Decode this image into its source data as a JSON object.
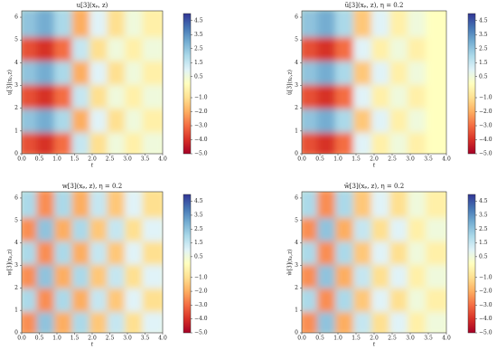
{
  "chart_data": [
    {
      "type": "heatmap",
      "title": "u[3](xₚ, z)",
      "x_label": "t",
      "y_label": "u[3](xₚ,z)",
      "x": [
        0.25,
        0.75,
        1.25,
        1.75,
        2.25,
        2.75,
        3.25,
        3.75
      ],
      "y": [
        0.52,
        1.57,
        2.62,
        3.67,
        4.71,
        5.76
      ],
      "values": [
        [
          -3.5,
          -4.0,
          -3.0,
          1.5,
          -1.0,
          0.5,
          -0.5,
          0.5
        ],
        [
          2.5,
          3.0,
          2.0,
          -2.0,
          1.0,
          -1.0,
          0.5,
          -0.5
        ],
        [
          -3.5,
          -4.0,
          -3.0,
          1.5,
          -1.0,
          0.5,
          -0.5,
          0.5
        ],
        [
          2.5,
          3.0,
          2.0,
          -2.0,
          1.0,
          -1.0,
          0.5,
          -0.5
        ],
        [
          -3.5,
          -4.0,
          -3.0,
          1.5,
          -1.0,
          0.5,
          -0.5,
          0.5
        ],
        [
          2.5,
          3.0,
          2.0,
          -2.0,
          1.0,
          -1.0,
          0.5,
          -0.5
        ]
      ],
      "xlim": [
        0,
        4
      ],
      "ylim": [
        0,
        6.28
      ],
      "clim": [
        -5,
        5
      ],
      "colormap": "RdYlBu",
      "xticks": [
        {
          "value": 0,
          "label": "0.0"
        },
        0.5,
        {
          "value": 1,
          "label": "1.0"
        },
        1.5,
        {
          "value": 2,
          "label": "2.0"
        },
        2.5,
        {
          "value": 3,
          "label": "3.0"
        },
        3.5,
        {
          "value": 4,
          "label": "4.0"
        }
      ],
      "yticks": [
        0,
        1,
        2,
        3,
        4,
        5,
        6
      ],
      "cticks": [
        4.5,
        3.5,
        2.5,
        1.5,
        0.5,
        {
          "value": -1,
          "label": "−1.0"
        },
        {
          "value": -2,
          "label": "−2.0"
        },
        {
          "value": -3,
          "label": "−3.0"
        },
        {
          "value": -4,
          "label": "−4.0"
        },
        {
          "value": -5,
          "label": "−5.0"
        }
      ]
    },
    {
      "type": "heatmap",
      "title": "ũ[3](xₚ, z), η = 0.2",
      "x_label": "t",
      "y_label": "ũ[3](xₚ,z)",
      "x": [
        0.25,
        0.75,
        1.25,
        1.75,
        2.25,
        2.75,
        3.25,
        3.75
      ],
      "y": [
        0.52,
        1.57,
        2.62,
        3.67,
        4.71,
        5.76
      ],
      "values": [
        [
          -3.5,
          -4.0,
          -3.0,
          1.0,
          -0.5,
          0.5,
          -0.5,
          0.0
        ],
        [
          2.5,
          3.0,
          2.0,
          -1.5,
          1.0,
          -0.5,
          0.5,
          0.0
        ],
        [
          -3.5,
          -4.0,
          -3.0,
          1.0,
          -0.5,
          0.5,
          -0.5,
          0.0
        ],
        [
          2.5,
          3.0,
          2.0,
          -1.5,
          1.0,
          -0.5,
          0.5,
          0.0
        ],
        [
          -3.5,
          -4.0,
          -3.0,
          1.0,
          -0.5,
          0.5,
          -0.5,
          0.0
        ],
        [
          2.5,
          3.0,
          2.0,
          -1.5,
          1.0,
          -0.5,
          0.5,
          0.0
        ]
      ],
      "xlim": [
        0,
        4
      ],
      "ylim": [
        0,
        6.28
      ],
      "clim": [
        -5,
        5
      ],
      "colormap": "RdYlBu",
      "xticks": [
        {
          "value": 0,
          "label": "0.0"
        },
        0.5,
        {
          "value": 1,
          "label": "1.0"
        },
        1.5,
        {
          "value": 2,
          "label": "2.0"
        },
        2.5,
        {
          "value": 3,
          "label": "3.0"
        },
        3.5,
        {
          "value": 4,
          "label": "4.0"
        }
      ],
      "yticks": [
        0,
        1,
        2,
        3,
        4,
        5,
        6
      ],
      "cticks": [
        4.5,
        3.5,
        2.5,
        1.5,
        0.5,
        {
          "value": -1,
          "label": "−1.0"
        },
        {
          "value": -2,
          "label": "−2.0"
        },
        {
          "value": -3,
          "label": "−3.0"
        },
        {
          "value": -4,
          "label": "−4.0"
        },
        {
          "value": -5,
          "label": "−5.0"
        }
      ]
    },
    {
      "type": "heatmap",
      "title": "w[3](xₚ, z), η = 0.2",
      "x_label": "t",
      "y_label": "w[3](xₚ,z)",
      "x": [
        0.25,
        0.75,
        1.25,
        1.75,
        2.25,
        2.75,
        3.25,
        3.75
      ],
      "y": [
        0.52,
        1.57,
        2.62,
        3.67,
        4.71,
        5.76
      ],
      "values": [
        [
          -2.5,
          2.5,
          -2.0,
          2.0,
          -1.5,
          1.5,
          -1.0,
          1.0
        ],
        [
          2.0,
          -2.5,
          2.0,
          -2.0,
          1.5,
          -1.5,
          1.0,
          -1.0
        ],
        [
          -2.5,
          2.5,
          -2.0,
          2.0,
          -1.5,
          1.5,
          -1.0,
          1.0
        ],
        [
          2.0,
          -2.5,
          2.0,
          -2.0,
          1.5,
          -1.5,
          1.0,
          -1.0
        ],
        [
          -2.5,
          2.5,
          -2.0,
          2.0,
          -1.5,
          1.5,
          -1.0,
          1.0
        ],
        [
          2.0,
          -2.5,
          2.0,
          -2.0,
          1.5,
          -1.5,
          1.0,
          -1.0
        ]
      ],
      "xlim": [
        0,
        4
      ],
      "ylim": [
        0,
        6.28
      ],
      "clim": [
        -5,
        5
      ],
      "colormap": "RdYlBu",
      "xticks": [
        {
          "value": 0,
          "label": "0.0"
        },
        0.5,
        {
          "value": 1,
          "label": "1.0"
        },
        1.5,
        {
          "value": 2,
          "label": "2.0"
        },
        2.5,
        {
          "value": 3,
          "label": "3.0"
        },
        3.5,
        {
          "value": 4,
          "label": "4.0"
        }
      ],
      "yticks": [
        0,
        1,
        2,
        3,
        4,
        5,
        6
      ],
      "cticks": [
        4.5,
        3.5,
        2.5,
        1.5,
        0.5,
        {
          "value": -1,
          "label": "−1.0"
        },
        {
          "value": -2,
          "label": "−2.0"
        },
        {
          "value": -3,
          "label": "−3.0"
        },
        {
          "value": -4,
          "label": "−4.0"
        },
        {
          "value": -5,
          "label": "−5.0"
        }
      ]
    },
    {
      "type": "heatmap",
      "title": "w̃[3](xₚ, z), η = 0.2",
      "x_label": "t",
      "y_label": "w̃[3](xₚ,z)",
      "x": [
        0.25,
        0.75,
        1.25,
        1.75,
        2.25,
        2.75,
        3.25,
        3.75
      ],
      "y": [
        0.52,
        1.57,
        2.62,
        3.67,
        4.71,
        5.76
      ],
      "values": [
        [
          -2.5,
          2.5,
          -2.0,
          1.5,
          -1.0,
          1.0,
          -0.5,
          0.5
        ],
        [
          2.0,
          -2.5,
          2.0,
          -1.5,
          1.0,
          -1.0,
          0.5,
          -0.5
        ],
        [
          -2.5,
          2.5,
          -2.0,
          1.5,
          -1.0,
          1.0,
          -0.5,
          0.5
        ],
        [
          2.0,
          -2.5,
          2.0,
          -1.5,
          1.0,
          -1.0,
          0.5,
          -0.5
        ],
        [
          -2.5,
          2.5,
          -2.0,
          1.5,
          -1.0,
          1.0,
          -0.5,
          0.5
        ],
        [
          2.0,
          -2.5,
          2.0,
          -1.5,
          1.0,
          -1.0,
          0.5,
          -0.5
        ]
      ],
      "xlim": [
        0,
        4
      ],
      "ylim": [
        0,
        6.28
      ],
      "clim": [
        -5,
        5
      ],
      "colormap": "RdYlBu",
      "xticks": [
        {
          "value": 0,
          "label": "0.0"
        },
        0.5,
        {
          "value": 1,
          "label": "1.0"
        },
        1.5,
        {
          "value": 2,
          "label": "2.0"
        },
        2.5,
        {
          "value": 3,
          "label": "3.0"
        },
        3.5,
        {
          "value": 4,
          "label": "4.0"
        }
      ],
      "yticks": [
        0,
        1,
        2,
        3,
        4,
        5,
        6
      ],
      "cticks": [
        4.5,
        3.5,
        2.5,
        1.5,
        0.5,
        {
          "value": -1,
          "label": "−1.0"
        },
        {
          "value": -2,
          "label": "−2.0"
        },
        {
          "value": -3,
          "label": "−3.0"
        },
        {
          "value": -4,
          "label": "−4.0"
        },
        {
          "value": -5,
          "label": "−5.0"
        }
      ]
    }
  ]
}
